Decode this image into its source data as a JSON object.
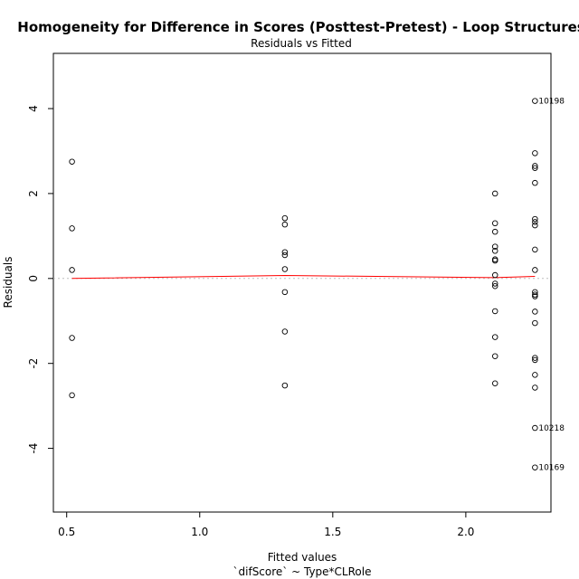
{
  "chart_data": {
    "type": "scatter",
    "title": "Homogeneity for Difference in Scores (Posttest-Pretest) - Loop Structures",
    "subtitle": "Residuals vs Fitted",
    "xlabel": "Fitted values",
    "xlabel2": "`difScore` ~ Type*CLRole",
    "ylabel": "Residuals",
    "xlim": [
      0.45,
      2.32
    ],
    "ylim": [
      -5.5,
      5.3
    ],
    "x_ticks": [
      0.5,
      1.0,
      1.5,
      2.0
    ],
    "x_tick_labels": [
      "0.5",
      "1.0",
      "1.5",
      "2.0"
    ],
    "y_ticks": [
      -4,
      -2,
      0,
      2,
      4
    ],
    "y_tick_labels": [
      "-4",
      "-2",
      "0",
      "2",
      "4"
    ],
    "grid": false,
    "colors": {
      "points": "#000000",
      "smooth": "#ff0000",
      "zero_line": "#bebebe"
    },
    "points": [
      {
        "x": 0.52,
        "y": 2.75
      },
      {
        "x": 0.52,
        "y": 1.18
      },
      {
        "x": 0.52,
        "y": 0.2
      },
      {
        "x": 0.52,
        "y": -1.4
      },
      {
        "x": 0.52,
        "y": -2.75
      },
      {
        "x": 1.32,
        "y": 1.42
      },
      {
        "x": 1.32,
        "y": 1.27
      },
      {
        "x": 1.32,
        "y": 0.62
      },
      {
        "x": 1.32,
        "y": 0.55
      },
      {
        "x": 1.32,
        "y": 0.22
      },
      {
        "x": 1.32,
        "y": -0.32
      },
      {
        "x": 1.32,
        "y": -1.25
      },
      {
        "x": 1.32,
        "y": -2.52
      },
      {
        "x": 2.11,
        "y": 2.0
      },
      {
        "x": 2.11,
        "y": 1.3
      },
      {
        "x": 2.11,
        "y": 1.1
      },
      {
        "x": 2.11,
        "y": 0.75
      },
      {
        "x": 2.11,
        "y": 0.65
      },
      {
        "x": 2.11,
        "y": 0.45
      },
      {
        "x": 2.11,
        "y": 0.42
      },
      {
        "x": 2.11,
        "y": 0.08
      },
      {
        "x": 2.11,
        "y": -0.12
      },
      {
        "x": 2.11,
        "y": -0.18
      },
      {
        "x": 2.11,
        "y": -0.77
      },
      {
        "x": 2.11,
        "y": -1.38
      },
      {
        "x": 2.11,
        "y": -1.83
      },
      {
        "x": 2.11,
        "y": -2.47
      },
      {
        "x": 2.26,
        "y": 4.18
      },
      {
        "x": 2.26,
        "y": 2.95
      },
      {
        "x": 2.26,
        "y": 2.65
      },
      {
        "x": 2.26,
        "y": 2.6
      },
      {
        "x": 2.26,
        "y": 2.25
      },
      {
        "x": 2.26,
        "y": 1.4
      },
      {
        "x": 2.26,
        "y": 1.33
      },
      {
        "x": 2.26,
        "y": 1.25
      },
      {
        "x": 2.26,
        "y": 0.68
      },
      {
        "x": 2.26,
        "y": 0.2
      },
      {
        "x": 2.26,
        "y": -0.32
      },
      {
        "x": 2.26,
        "y": -0.38
      },
      {
        "x": 2.26,
        "y": -0.42
      },
      {
        "x": 2.26,
        "y": -0.78
      },
      {
        "x": 2.26,
        "y": -1.05
      },
      {
        "x": 2.26,
        "y": -1.87
      },
      {
        "x": 2.26,
        "y": -1.92
      },
      {
        "x": 2.26,
        "y": -2.27
      },
      {
        "x": 2.26,
        "y": -2.57
      },
      {
        "x": 2.26,
        "y": -3.52
      },
      {
        "x": 2.26,
        "y": -4.45
      }
    ],
    "smooth_line": [
      {
        "x": 0.52,
        "y": 0.0
      },
      {
        "x": 1.32,
        "y": 0.07
      },
      {
        "x": 2.11,
        "y": 0.02
      },
      {
        "x": 2.26,
        "y": 0.05
      }
    ],
    "annotations": [
      {
        "label": "10198",
        "x": 2.26,
        "y": 4.18
      },
      {
        "label": "10218",
        "x": 2.26,
        "y": -3.52
      },
      {
        "label": "10169",
        "x": 2.26,
        "y": -4.45
      }
    ]
  }
}
